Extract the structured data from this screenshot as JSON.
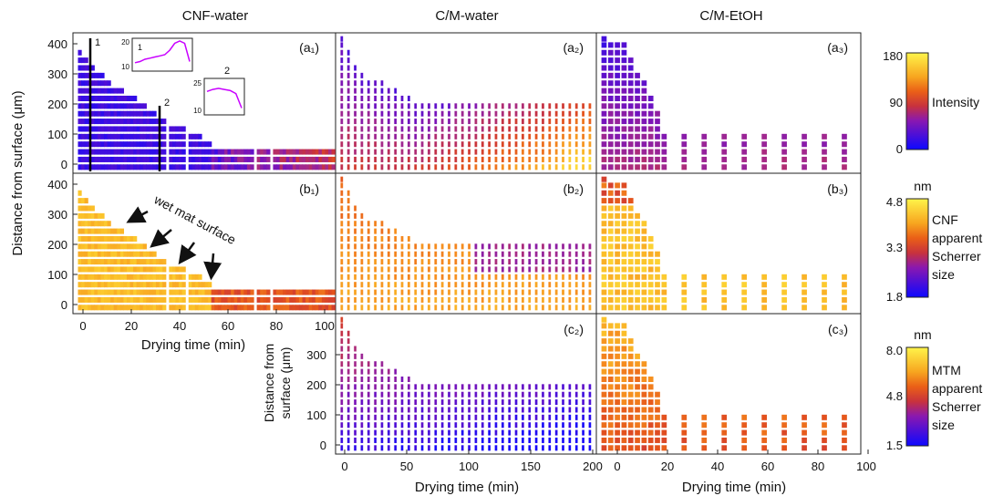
{
  "columns": [
    {
      "title": "CNF-water"
    },
    {
      "title": "C/M-water"
    },
    {
      "title": "C/M-EtOH"
    }
  ],
  "colormaps": {
    "plasma": [
      "#0d08ff",
      "#4b0fd8",
      "#7a14b8",
      "#a52a8a",
      "#c8323d",
      "#e4521c",
      "#f58a1e",
      "#fbc22a",
      "#fff44a"
    ]
  },
  "colorbars": [
    {
      "unit": "",
      "max": "180",
      "mid": "90",
      "min": "0",
      "label_lines": [
        "Intensity"
      ]
    },
    {
      "unit": "nm",
      "max": "4.8",
      "mid": "3.3",
      "min": "1.8",
      "label_lines": [
        "CNF",
        "apparent",
        "Scherrer",
        "size"
      ]
    },
    {
      "unit": "nm",
      "max": "8.0",
      "mid": "4.8",
      "min": "1.5",
      "label_lines": [
        "MTM",
        "apparent",
        "Scherrer",
        "size"
      ]
    }
  ],
  "axes": {
    "ylabel_top": "Distance from surface (μm)",
    "ylabel_bottom_lines": [
      "Distance from",
      "surface (μm)"
    ],
    "xlabel": "Drying time (min)"
  },
  "annotations": {
    "wet_mat": "wet mat surface",
    "line1": "1",
    "line2": "2",
    "inset1_label": "1",
    "inset2_label": "2"
  },
  "chart_data": [
    {
      "type": "heatmap",
      "panel": "(a₁)",
      "ylim": [
        -20,
        440
      ],
      "xlim": [
        0,
        105
      ],
      "yticks": [
        "0",
        "100",
        "200",
        "300",
        "400"
      ],
      "xticks": [
        "0",
        "20",
        "40",
        "60",
        "80",
        "100"
      ],
      "front": [
        [
          2,
          380
        ],
        [
          6,
          340
        ],
        [
          10,
          310
        ],
        [
          15,
          270
        ],
        [
          22,
          240
        ],
        [
          28,
          200
        ],
        [
          40,
          140
        ],
        [
          48,
          110
        ],
        [
          56,
          70
        ],
        [
          105,
          70
        ]
      ],
      "lines": [
        {
          "label": "1",
          "x": 3
        },
        {
          "label": "2",
          "x": 33
        }
      ],
      "insets": [
        {
          "label": "1",
          "yticks": [
            "10",
            "20"
          ],
          "values": [
            12.5,
            13,
            14,
            14.5,
            15,
            15.5,
            16,
            18,
            21,
            22,
            21,
            13
          ]
        },
        {
          "label": "2",
          "yticks": [
            "10",
            "25"
          ],
          "values": [
            20,
            21,
            21.5,
            21,
            20.5,
            19,
            12
          ]
        }
      ]
    },
    {
      "type": "heatmap",
      "panel": "(a₂)",
      "ylim": [
        -20,
        440
      ],
      "xlim": [
        -5,
        205
      ],
      "front": [
        [
          0,
          420
        ],
        [
          10,
          340
        ],
        [
          20,
          300
        ],
        [
          35,
          270
        ],
        [
          50,
          240
        ],
        [
          60,
          200
        ],
        [
          80,
          200
        ],
        [
          200,
          200
        ]
      ]
    },
    {
      "type": "heatmap",
      "panel": "(a₃)",
      "ylim": [
        -20,
        440
      ],
      "xlim": [
        -3,
        100
      ],
      "front": [
        [
          0,
          420
        ],
        [
          8,
          400
        ],
        [
          12,
          330
        ],
        [
          16,
          280
        ],
        [
          20,
          200
        ],
        [
          23,
          120
        ],
        [
          100,
          120
        ]
      ]
    },
    {
      "type": "heatmap",
      "panel": "(b₁)",
      "ylim": [
        -20,
        440
      ],
      "xlim": [
        0,
        105
      ],
      "yticks": [
        "0",
        "100",
        "200",
        "300",
        "400"
      ],
      "xticks": [
        "0",
        "20",
        "40",
        "60",
        "80",
        "100"
      ],
      "front": [
        [
          2,
          380
        ],
        [
          6,
          340
        ],
        [
          10,
          310
        ],
        [
          15,
          270
        ],
        [
          22,
          240
        ],
        [
          28,
          200
        ],
        [
          40,
          140
        ],
        [
          48,
          110
        ],
        [
          56,
          70
        ],
        [
          105,
          70
        ]
      ]
    },
    {
      "type": "heatmap",
      "panel": "(b₂)",
      "ylim": [
        -20,
        440
      ],
      "xlim": [
        -5,
        205
      ],
      "front": [
        [
          0,
          420
        ],
        [
          10,
          340
        ],
        [
          20,
          300
        ],
        [
          35,
          270
        ],
        [
          50,
          240
        ],
        [
          60,
          200
        ],
        [
          80,
          200
        ],
        [
          200,
          200
        ]
      ]
    },
    {
      "type": "heatmap",
      "panel": "(b₃)",
      "ylim": [
        -20,
        440
      ],
      "xlim": [
        -3,
        100
      ],
      "front": [
        [
          0,
          420
        ],
        [
          8,
          400
        ],
        [
          12,
          330
        ],
        [
          16,
          280
        ],
        [
          20,
          200
        ],
        [
          23,
          120
        ],
        [
          100,
          120
        ]
      ]
    },
    {
      "type": "heatmap",
      "panel": "(c₂)",
      "ylim": [
        -20,
        440
      ],
      "xlim": [
        -5,
        205
      ],
      "yticks": [
        "0",
        "100",
        "200",
        "300"
      ],
      "xticks": [
        "0",
        "50",
        "100",
        "150",
        "200"
      ],
      "front": [
        [
          0,
          420
        ],
        [
          10,
          340
        ],
        [
          20,
          300
        ],
        [
          35,
          270
        ],
        [
          50,
          240
        ],
        [
          60,
          200
        ],
        [
          80,
          200
        ],
        [
          200,
          200
        ]
      ]
    },
    {
      "type": "heatmap",
      "panel": "(c₃)",
      "ylim": [
        -20,
        440
      ],
      "xlim": [
        -3,
        100
      ],
      "xticks": [
        "0",
        "20",
        "40",
        "60",
        "80",
        "100"
      ],
      "front": [
        [
          0,
          420
        ],
        [
          8,
          400
        ],
        [
          12,
          330
        ],
        [
          16,
          280
        ],
        [
          20,
          200
        ],
        [
          23,
          120
        ],
        [
          100,
          120
        ]
      ]
    }
  ]
}
